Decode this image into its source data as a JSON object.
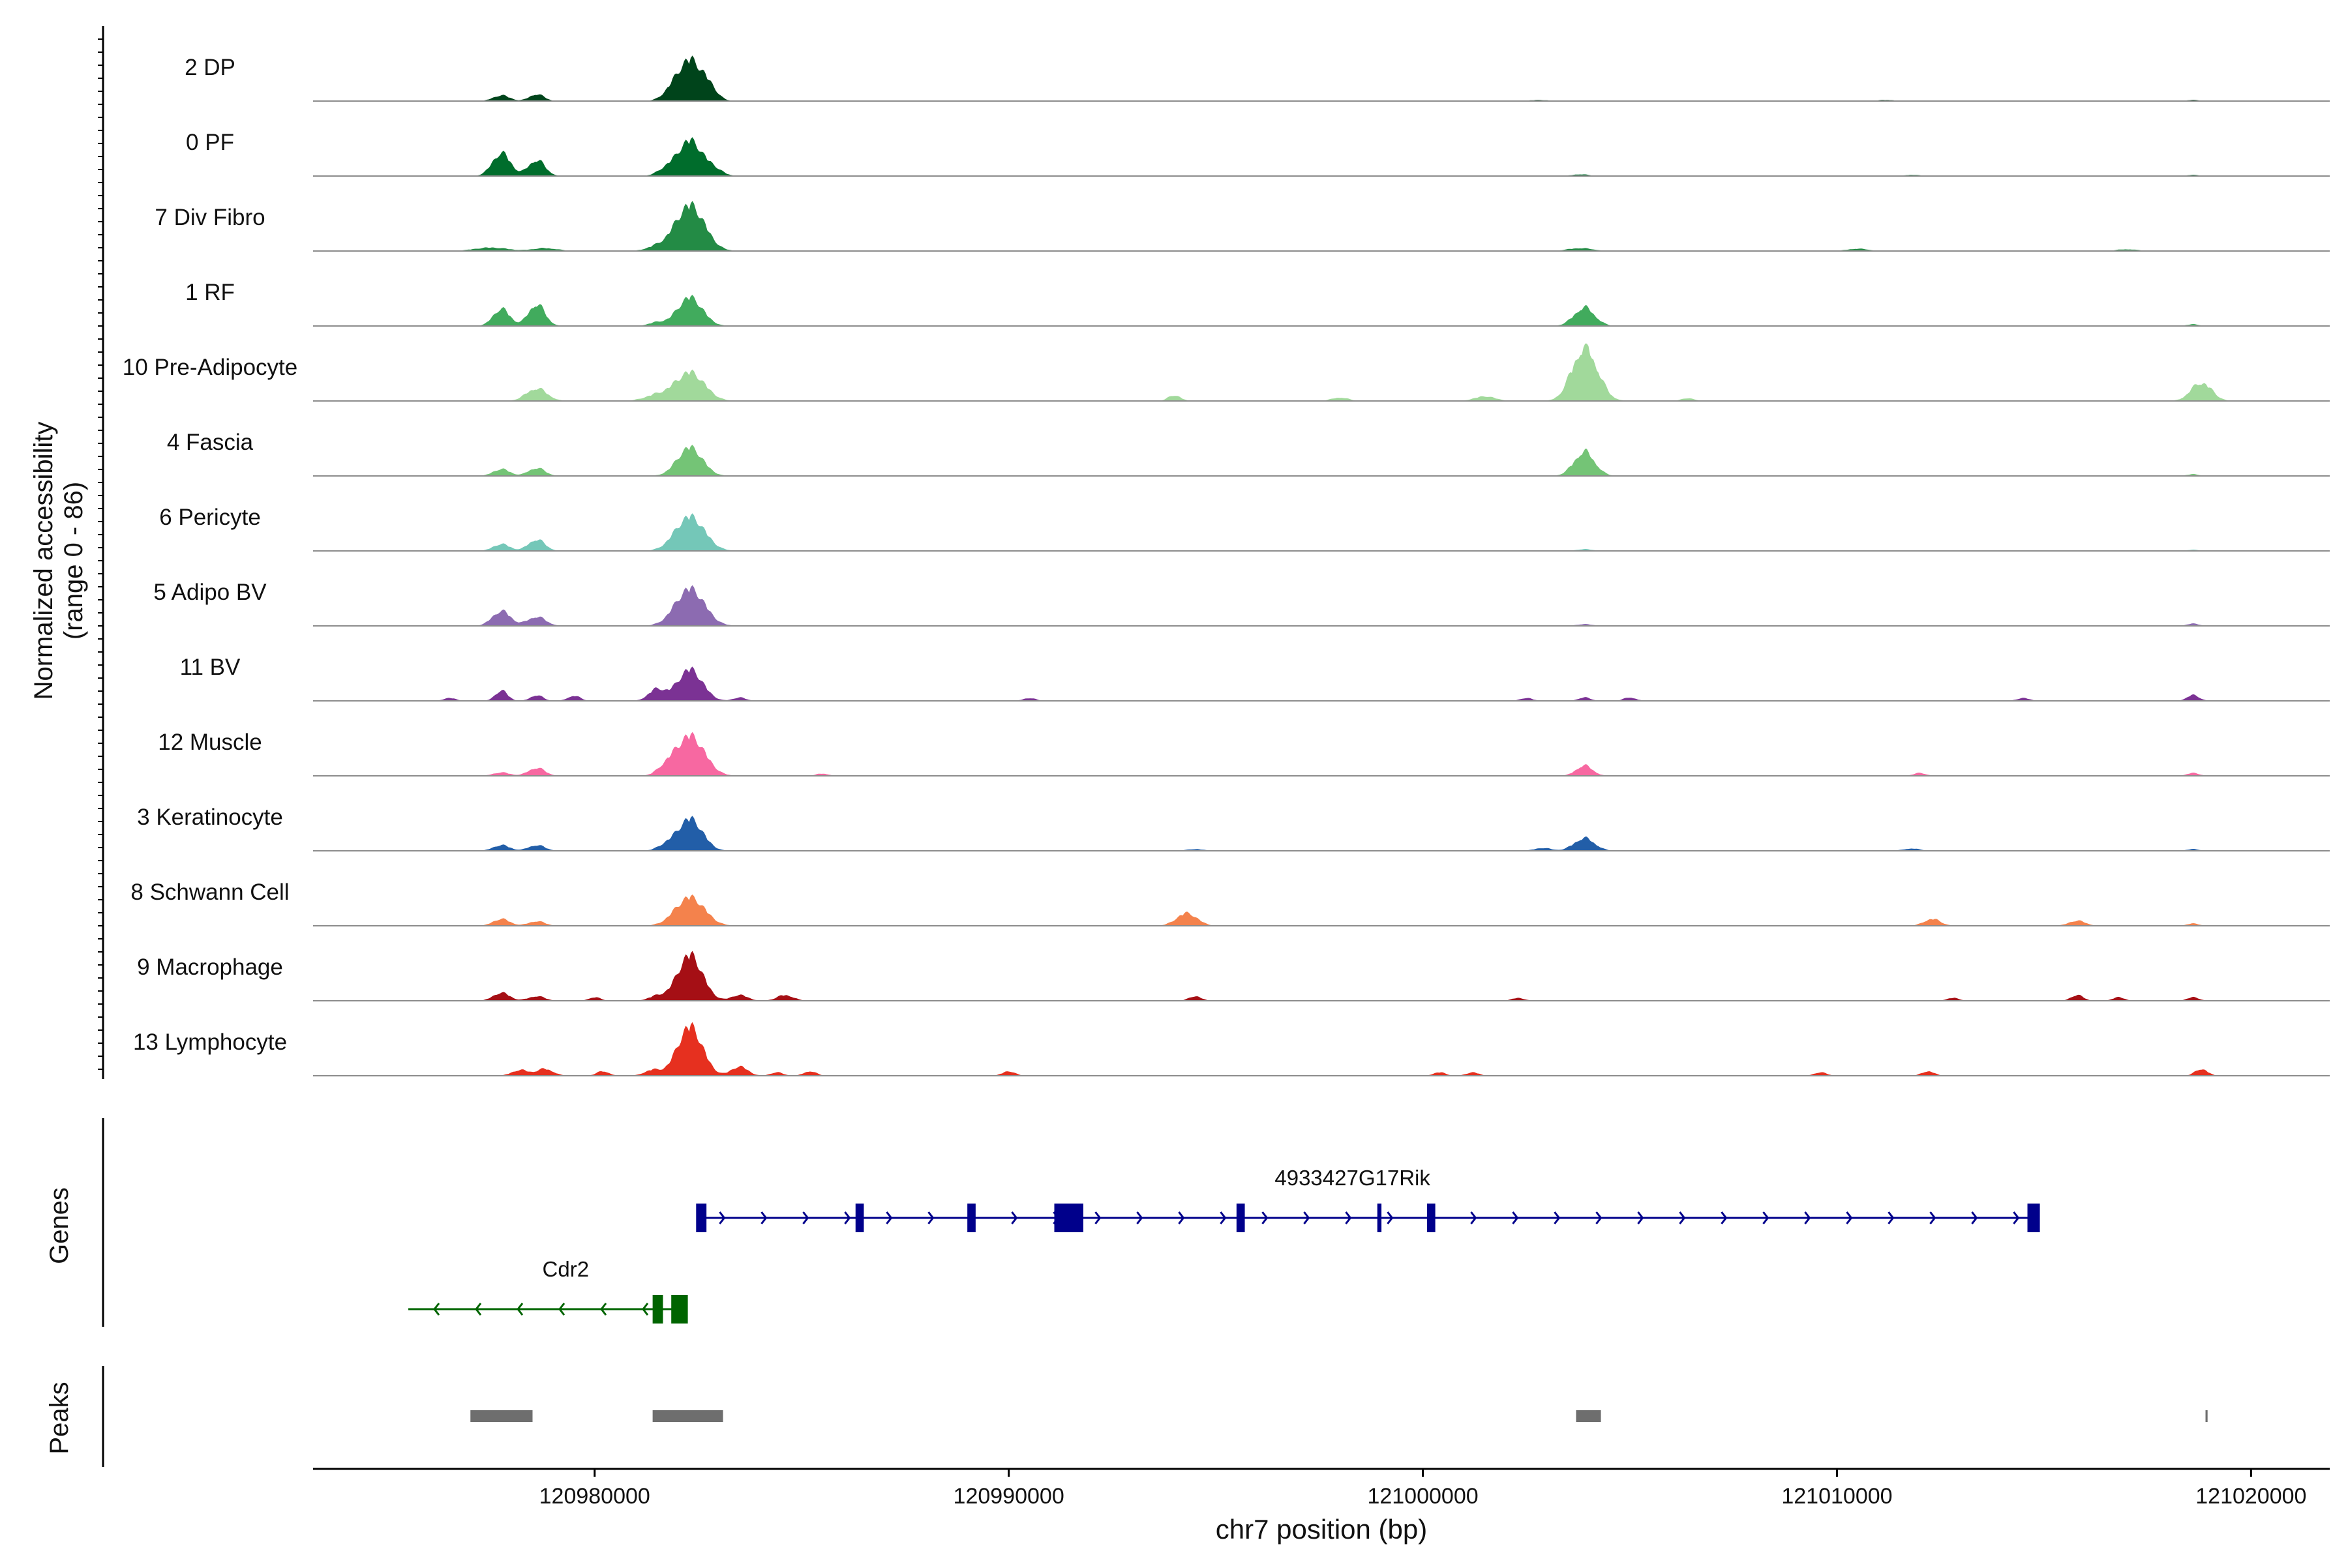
{
  "chart_data": {
    "type": "area",
    "title": "",
    "xlabel": "chr7 position (bp)",
    "ylabel_line1": "Normalized accessibility",
    "ylabel_line2": "(range 0 - 86)",
    "ylim": [
      0,
      86
    ],
    "xlim": [
      120973200,
      121021900
    ],
    "x_ticks": [
      120980000,
      120990000,
      121000000,
      121010000,
      121020000
    ],
    "x_tick_labels": [
      "120980000",
      "120990000",
      "121000000",
      "121010000",
      "121020000"
    ],
    "genes_label": "Genes",
    "peaks_label": "Peaks",
    "tracks": [
      {
        "name": "2 DP",
        "color": "#00441b",
        "peaks": [
          [
            120977750,
            10,
            200
          ],
          [
            120978600,
            12,
            180
          ],
          [
            120981800,
            6,
            200
          ],
          [
            120982300,
            72,
            320
          ],
          [
            120982800,
            12,
            180
          ],
          [
            121002800,
            2,
            200
          ],
          [
            121011200,
            2,
            200
          ],
          [
            121018600,
            2,
            150
          ]
        ]
      },
      {
        "name": "0 PF",
        "color": "#006d2c",
        "peaks": [
          [
            120977750,
            40,
            220
          ],
          [
            120978600,
            28,
            200
          ],
          [
            120981700,
            10,
            200
          ],
          [
            120982300,
            62,
            300
          ],
          [
            120982900,
            10,
            200
          ],
          [
            121003800,
            3,
            200
          ],
          [
            121011800,
            2,
            200
          ],
          [
            121018600,
            2,
            150
          ]
        ]
      },
      {
        "name": "7 Div Fibro",
        "color": "#238b45",
        "peaks": [
          [
            120977500,
            6,
            400
          ],
          [
            120978800,
            5,
            300
          ],
          [
            120981500,
            7,
            250
          ],
          [
            120982300,
            80,
            350
          ],
          [
            121003800,
            5,
            300
          ],
          [
            121010500,
            4,
            250
          ],
          [
            121017000,
            3,
            250
          ]
        ]
      },
      {
        "name": "1 RF",
        "color": "#41ab5d",
        "peaks": [
          [
            120977750,
            30,
            200
          ],
          [
            120978600,
            38,
            200
          ],
          [
            120981500,
            6,
            200
          ],
          [
            120982300,
            50,
            300
          ],
          [
            121003900,
            32,
            250
          ],
          [
            121018600,
            3,
            150
          ]
        ]
      },
      {
        "name": "10 Pre-Adipocyte",
        "color": "#a1d99b",
        "peaks": [
          [
            120978600,
            22,
            250
          ],
          [
            120981500,
            10,
            300
          ],
          [
            120982300,
            50,
            350
          ],
          [
            120994000,
            10,
            150
          ],
          [
            120998000,
            6,
            200
          ],
          [
            121001500,
            8,
            250
          ],
          [
            121003700,
            16,
            250
          ],
          [
            121003950,
            82,
            300
          ],
          [
            121006400,
            5,
            150
          ],
          [
            121018800,
            32,
            250
          ]
        ]
      },
      {
        "name": "4 Fascia",
        "color": "#74c476",
        "peaks": [
          [
            120977750,
            12,
            200
          ],
          [
            120978600,
            14,
            200
          ],
          [
            120982300,
            50,
            300
          ],
          [
            121003900,
            42,
            250
          ],
          [
            121018600,
            3,
            150
          ]
        ]
      },
      {
        "name": "6 Pericyte",
        "color": "#74c7b8",
        "peaks": [
          [
            120977750,
            12,
            200
          ],
          [
            120978600,
            20,
            200
          ],
          [
            120982300,
            60,
            350
          ],
          [
            121003900,
            3,
            200
          ],
          [
            121018600,
            2,
            150
          ]
        ]
      },
      {
        "name": "5 Adipo BV",
        "color": "#8c6bb1",
        "peaks": [
          [
            120977750,
            26,
            220
          ],
          [
            120978600,
            16,
            220
          ],
          [
            120982300,
            65,
            350
          ],
          [
            121003900,
            3,
            200
          ],
          [
            121018600,
            4,
            150
          ]
        ]
      },
      {
        "name": "11 BV",
        "color": "#7b3294",
        "peaks": [
          [
            120976500,
            5,
            150
          ],
          [
            120977750,
            18,
            150
          ],
          [
            120978600,
            10,
            150
          ],
          [
            120979500,
            9,
            150
          ],
          [
            120981500,
            20,
            200
          ],
          [
            120982300,
            55,
            300
          ],
          [
            120983500,
            6,
            150
          ],
          [
            120990500,
            5,
            150
          ],
          [
            121002500,
            5,
            150
          ],
          [
            121003900,
            6,
            150
          ],
          [
            121005000,
            6,
            150
          ],
          [
            121014500,
            5,
            150
          ],
          [
            121018600,
            10,
            150
          ]
        ]
      },
      {
        "name": "12 Muscle",
        "color": "#f768a1",
        "peaks": [
          [
            120977750,
            6,
            200
          ],
          [
            120978600,
            14,
            200
          ],
          [
            120981700,
            10,
            200
          ],
          [
            120982300,
            70,
            350
          ],
          [
            120985500,
            4,
            150
          ],
          [
            121003900,
            18,
            200
          ],
          [
            121012000,
            5,
            150
          ],
          [
            121018600,
            5,
            150
          ]
        ]
      },
      {
        "name": "3 Keratinocyte",
        "color": "#225ea8",
        "peaks": [
          [
            120977750,
            10,
            200
          ],
          [
            120978600,
            10,
            200
          ],
          [
            120981700,
            8,
            200
          ],
          [
            120982300,
            56,
            300
          ],
          [
            120994500,
            3,
            200
          ],
          [
            121002900,
            5,
            200
          ],
          [
            121003900,
            22,
            250
          ],
          [
            121011800,
            4,
            200
          ],
          [
            121018600,
            3,
            150
          ]
        ]
      },
      {
        "name": "8 Schwann Cell",
        "color": "#f4824c",
        "peaks": [
          [
            120977750,
            12,
            200
          ],
          [
            120978600,
            8,
            200
          ],
          [
            120982300,
            50,
            350
          ],
          [
            120994300,
            22,
            250
          ],
          [
            121012300,
            12,
            200
          ],
          [
            121015800,
            9,
            200
          ],
          [
            121018600,
            4,
            150
          ]
        ]
      },
      {
        "name": "9 Macrophage",
        "color": "#a50f15",
        "peaks": [
          [
            120977750,
            14,
            200
          ],
          [
            120978600,
            8,
            200
          ],
          [
            120980000,
            6,
            150
          ],
          [
            120981500,
            8,
            200
          ],
          [
            120982300,
            80,
            300
          ],
          [
            120983500,
            10,
            200
          ],
          [
            120984600,
            10,
            200
          ],
          [
            120994500,
            8,
            150
          ],
          [
            121002300,
            5,
            150
          ],
          [
            121012800,
            5,
            150
          ],
          [
            121015800,
            10,
            150
          ],
          [
            121016800,
            6,
            150
          ],
          [
            121018600,
            6,
            150
          ]
        ]
      },
      {
        "name": "13 Lymphocyte",
        "color": "#e6301f",
        "peaks": [
          [
            120978200,
            10,
            200
          ],
          [
            120978800,
            12,
            200
          ],
          [
            120980200,
            8,
            150
          ],
          [
            120981400,
            10,
            200
          ],
          [
            120982300,
            86,
            300
          ],
          [
            120983500,
            16,
            200
          ],
          [
            120984400,
            6,
            150
          ],
          [
            120985200,
            8,
            150
          ],
          [
            120990000,
            8,
            150
          ],
          [
            121000400,
            6,
            150
          ],
          [
            121001200,
            6,
            150
          ],
          [
            121009600,
            6,
            150
          ],
          [
            121012200,
            8,
            150
          ],
          [
            121018800,
            12,
            150
          ]
        ]
      }
    ],
    "genes": [
      {
        "name": "4933427G17Rik",
        "strand": "+",
        "start": 120982500,
        "end": 121014800,
        "color": "#00008b",
        "row": 0,
        "exons": [
          [
            120982450,
            120982700
          ],
          [
            120986300,
            120986500
          ],
          [
            120989000,
            120989200
          ],
          [
            120991100,
            120991800
          ],
          [
            120995500,
            120995700
          ],
          [
            120998900,
            120999000
          ],
          [
            121000100,
            121000300
          ],
          [
            121014600,
            121014900
          ]
        ]
      },
      {
        "name": "Cdr2",
        "strand": "-",
        "start": 120975500,
        "end": 120982200,
        "color": "#006400",
        "row": 1,
        "exons": [
          [
            120981400,
            120981650
          ],
          [
            120981850,
            120982250
          ]
        ]
      }
    ],
    "peaks": [
      [
        120977000,
        120978500
      ],
      [
        120981400,
        120983100
      ],
      [
        121003700,
        121004300
      ],
      [
        121018900,
        121018950
      ]
    ]
  }
}
